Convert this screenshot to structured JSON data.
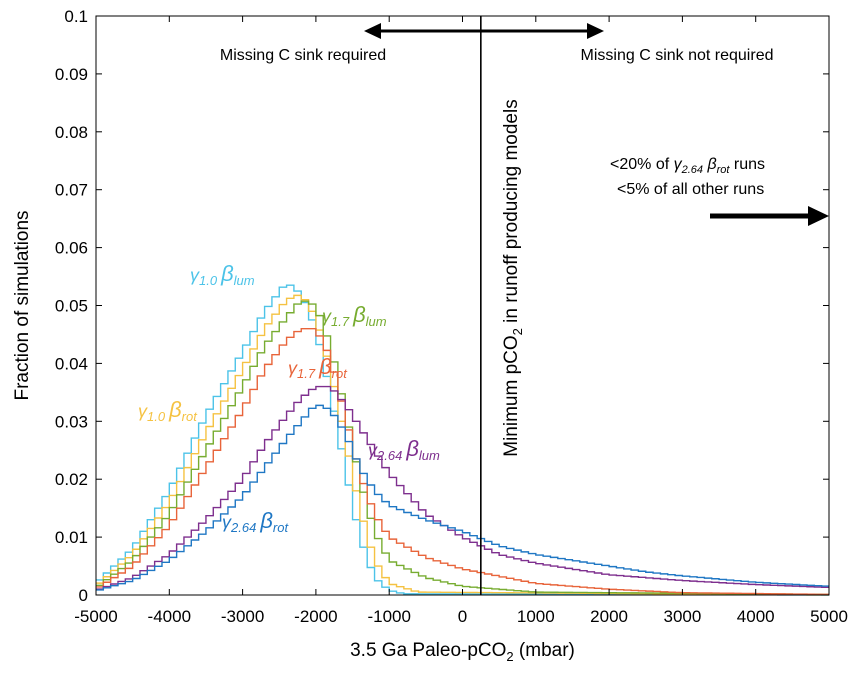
{
  "chart_data": {
    "type": "line",
    "xlabel": "3.5 Ga Paleo-pCO",
    "xlabel_sub": "2",
    "xlabel_tail": " (mbar)",
    "ylabel": "Fraction of simulations",
    "xlim": [
      -5000,
      5000
    ],
    "ylim": [
      0,
      0.1
    ],
    "xticks": [
      -5000,
      -4000,
      -3000,
      -2000,
      -1000,
      0,
      1000,
      2000,
      3000,
      4000,
      5000
    ],
    "yticks": [
      0,
      0.01,
      0.02,
      0.03,
      0.04,
      0.05,
      0.06,
      0.07,
      0.08,
      0.09,
      0.1
    ],
    "xtick_labels": [
      "-5000",
      "-4000",
      "-3000",
      "-2000",
      "-1000",
      "0",
      "1000",
      "2000",
      "3000",
      "4000",
      "5000"
    ],
    "ytick_labels": [
      "0",
      "0.01",
      "0.02",
      "0.03",
      "0.04",
      "0.05",
      "0.06",
      "0.07",
      "0.08",
      "0.09",
      "0.1"
    ],
    "grid": false,
    "vertical_line": {
      "x": 250,
      "label": "Minimum pCO",
      "label_sub": "2",
      "label_tail": " in runoff producing models"
    },
    "annotations": {
      "left_text": "Missing C sink required",
      "right_text": "Missing C sink not  required",
      "note_line1_pre": "<20% of ",
      "note_line1_gamma": "γ",
      "note_line1_gamma_sub": "2.64",
      "note_line1_beta": " β",
      "note_line1_beta_sub": "rot",
      "note_line1_post": " runs",
      "note_line2": "<5% of all other runs"
    },
    "series": [
      {
        "name_gamma": "γ",
        "name_gamma_sub": "1.0",
        "name_beta": "β",
        "name_beta_sub": "lum",
        "color": "#4cc3e8",
        "points": [
          [
            -5000,
            0.002
          ],
          [
            -4500,
            0.008
          ],
          [
            -4000,
            0.018
          ],
          [
            -3500,
            0.031
          ],
          [
            -3000,
            0.042
          ],
          [
            -2700,
            0.049
          ],
          [
            -2400,
            0.054
          ],
          [
            -2200,
            0.052
          ],
          [
            -2000,
            0.046
          ],
          [
            -1800,
            0.035
          ],
          [
            -1600,
            0.022
          ],
          [
            -1400,
            0.01
          ],
          [
            -1200,
            0.003
          ],
          [
            -1000,
            0.0008
          ],
          [
            -800,
            0.0002
          ],
          [
            5000,
            0.0
          ]
        ]
      },
      {
        "name_gamma": "γ",
        "name_gamma_sub": "1.0",
        "name_beta": "β",
        "name_beta_sub": "rot",
        "color": "#f5c242",
        "points": [
          [
            -5000,
            0.0015
          ],
          [
            -4500,
            0.007
          ],
          [
            -4000,
            0.016
          ],
          [
            -3500,
            0.028
          ],
          [
            -3000,
            0.039
          ],
          [
            -2700,
            0.046
          ],
          [
            -2400,
            0.051
          ],
          [
            -2200,
            0.052
          ],
          [
            -2000,
            0.048
          ],
          [
            -1800,
            0.039
          ],
          [
            -1600,
            0.027
          ],
          [
            -1400,
            0.015
          ],
          [
            -1200,
            0.006
          ],
          [
            -1000,
            0.002
          ],
          [
            -600,
            0.0005
          ],
          [
            5000,
            0.0
          ]
        ]
      },
      {
        "name_gamma": "γ",
        "name_gamma_sub": "1.7",
        "name_beta": "β",
        "name_beta_sub": "lum",
        "color": "#77ac30",
        "points": [
          [
            -5000,
            0.0012
          ],
          [
            -4500,
            0.006
          ],
          [
            -4000,
            0.014
          ],
          [
            -3500,
            0.025
          ],
          [
            -3000,
            0.036
          ],
          [
            -2700,
            0.043
          ],
          [
            -2400,
            0.048
          ],
          [
            -2200,
            0.051
          ],
          [
            -2000,
            0.05
          ],
          [
            -1800,
            0.043
          ],
          [
            -1600,
            0.032
          ],
          [
            -1400,
            0.02
          ],
          [
            -1200,
            0.011
          ],
          [
            -1000,
            0.006
          ],
          [
            -500,
            0.003
          ],
          [
            0,
            0.0015
          ],
          [
            1000,
            0.0005
          ],
          [
            5000,
            0.0001
          ]
        ]
      },
      {
        "name_gamma": "γ",
        "name_gamma_sub": "1.7",
        "name_beta": "β",
        "name_beta_sub": "rot",
        "color": "#e8643a",
        "points": [
          [
            -5000,
            0.001
          ],
          [
            -4500,
            0.005
          ],
          [
            -4000,
            0.012
          ],
          [
            -3500,
            0.022
          ],
          [
            -3000,
            0.032
          ],
          [
            -2700,
            0.039
          ],
          [
            -2400,
            0.044
          ],
          [
            -2200,
            0.046
          ],
          [
            -2000,
            0.046
          ],
          [
            -1800,
            0.041
          ],
          [
            -1600,
            0.031
          ],
          [
            -1400,
            0.021
          ],
          [
            -1200,
            0.014
          ],
          [
            -1000,
            0.01
          ],
          [
            -500,
            0.0065
          ],
          [
            0,
            0.0045
          ],
          [
            1000,
            0.002
          ],
          [
            2000,
            0.001
          ],
          [
            3000,
            0.0004
          ],
          [
            5000,
            0.0001
          ]
        ]
      },
      {
        "name_gamma": "γ",
        "name_gamma_sub": "2.64",
        "name_beta": "β",
        "name_beta_sub": "lum",
        "color": "#7e2f8e",
        "points": [
          [
            -5000,
            0.0008
          ],
          [
            -4500,
            0.003
          ],
          [
            -4000,
            0.007
          ],
          [
            -3500,
            0.013
          ],
          [
            -3000,
            0.02
          ],
          [
            -2700,
            0.026
          ],
          [
            -2400,
            0.031
          ],
          [
            -2200,
            0.034
          ],
          [
            -2000,
            0.036
          ],
          [
            -1800,
            0.036
          ],
          [
            -1600,
            0.033
          ],
          [
            -1400,
            0.029
          ],
          [
            -1200,
            0.025
          ],
          [
            -1000,
            0.021
          ],
          [
            -500,
            0.014
          ],
          [
            0,
            0.01
          ],
          [
            500,
            0.007
          ],
          [
            1000,
            0.0055
          ],
          [
            1500,
            0.0045
          ],
          [
            2000,
            0.0035
          ],
          [
            2500,
            0.003
          ],
          [
            3000,
            0.0025
          ],
          [
            4000,
            0.0018
          ],
          [
            5000,
            0.0013
          ]
        ]
      },
      {
        "name_gamma": "γ",
        "name_gamma_sub": "2.64",
        "name_beta": "β",
        "name_beta_sub": "rot",
        "color": "#1f77c4",
        "points": [
          [
            -5000,
            0.0007
          ],
          [
            -4500,
            0.0025
          ],
          [
            -4000,
            0.006
          ],
          [
            -3500,
            0.011
          ],
          [
            -3000,
            0.017
          ],
          [
            -2700,
            0.022
          ],
          [
            -2400,
            0.027
          ],
          [
            -2200,
            0.03
          ],
          [
            -2000,
            0.033
          ],
          [
            -1800,
            0.032
          ],
          [
            -1600,
            0.028
          ],
          [
            -1400,
            0.022
          ],
          [
            -1200,
            0.018
          ],
          [
            -1000,
            0.0155
          ],
          [
            -500,
            0.013
          ],
          [
            0,
            0.011
          ],
          [
            500,
            0.0085
          ],
          [
            1000,
            0.007
          ],
          [
            1500,
            0.006
          ],
          [
            2000,
            0.005
          ],
          [
            2500,
            0.004
          ],
          [
            3000,
            0.0033
          ],
          [
            4000,
            0.0022
          ],
          [
            5000,
            0.0015
          ]
        ]
      }
    ]
  }
}
